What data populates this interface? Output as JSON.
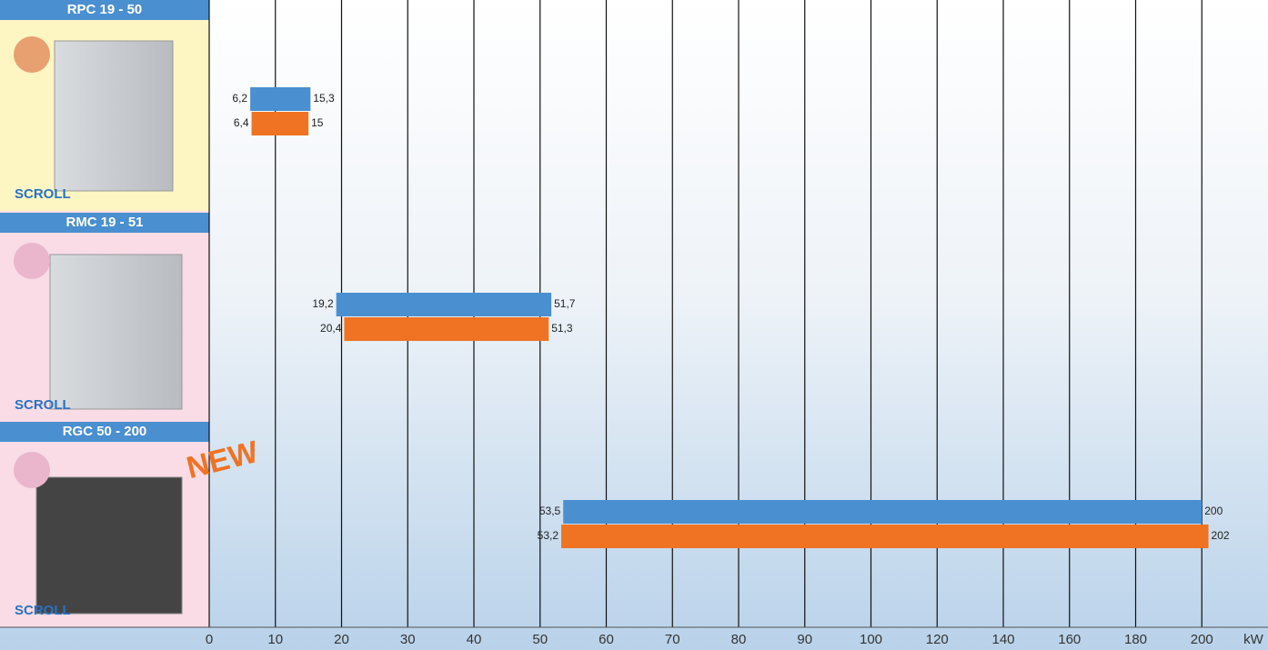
{
  "chart_data": {
    "type": "range-bar",
    "categories": [
      "RPC 19 - 50",
      "RMC 19 - 51",
      "RGC 50 - 200"
    ],
    "category_notes": [
      "SCROLL",
      "SCROLL",
      "SCROLL"
    ],
    "annotation": "NEW",
    "x_unit": "kW",
    "series": [
      {
        "color": "#4a8fd0",
        "starts": [
          6.2,
          19.2,
          53.5
        ],
        "ends": [
          15.3,
          51.7,
          200
        ],
        "start_labels": [
          "6,2",
          "19,2",
          "53,5"
        ],
        "end_labels": [
          "15,3",
          "51,7",
          "200"
        ]
      },
      {
        "color": "#f07323",
        "starts": [
          6.4,
          20.4,
          53.2
        ],
        "ends": [
          15,
          51.3,
          202
        ],
        "start_labels": [
          "6,4",
          "20,4",
          "53,2"
        ],
        "end_labels": [
          "15",
          "51,3",
          "202"
        ]
      }
    ],
    "xlim": [
      0,
      220
    ],
    "xticks": [
      0,
      10,
      20,
      30,
      40,
      50,
      60,
      70,
      80,
      90,
      100,
      120,
      140,
      160,
      180,
      200
    ],
    "grid": true
  }
}
